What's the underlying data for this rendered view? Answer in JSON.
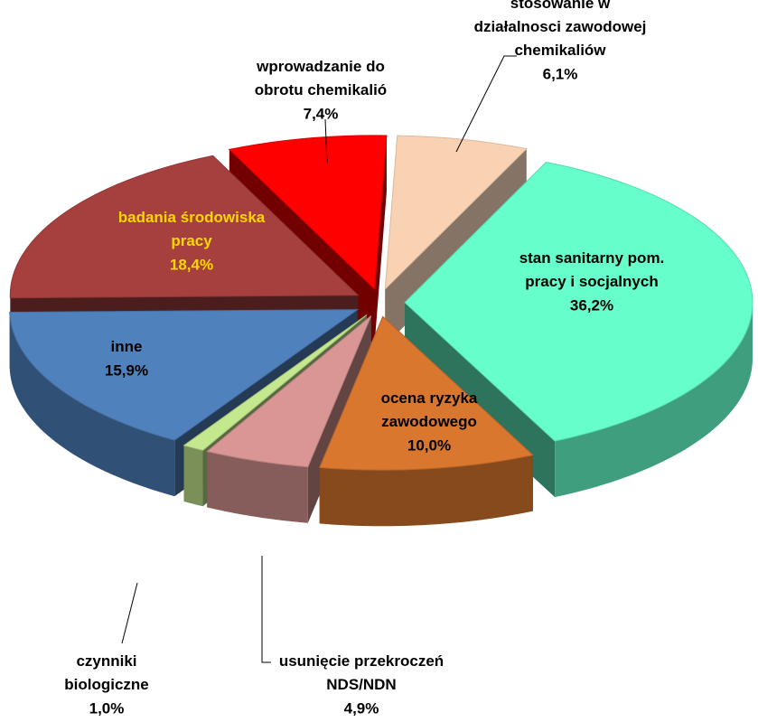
{
  "chart_data": {
    "type": "pie3d",
    "categories": [
      "stosowanie w\ndziałalnosci zawodowej\nchemikaliów",
      "stan sanitarny pom.\npracy i socjalnych",
      "ocena ryzyka\nzawodowego",
      "usunięcie przekroczeń\nNDS/NDN",
      "czynniki\nbiologiczne",
      "inne",
      "badania środowiska\npracy",
      "wprowadzanie do\nobrotu chemikalió"
    ],
    "values": [
      6.1,
      36.2,
      10.0,
      4.9,
      1.0,
      15.9,
      18.4,
      7.4
    ],
    "value_labels": [
      "6,1%",
      "36,2%",
      "10,0%",
      "4,9%",
      "1,0%",
      "15,9%",
      "18,4%",
      "7,4%"
    ],
    "colors": [
      "#f8cba6",
      "#66ffcc",
      "#d9772f",
      "#d99694",
      "#c4e88e",
      "#4f81bd",
      "#a6403e",
      "#ff0000"
    ],
    "label_colors": [
      "#000000",
      "#000000",
      "#000000",
      "#000000",
      "#000000",
      "#000000",
      "#ffd700",
      "#000000"
    ]
  }
}
